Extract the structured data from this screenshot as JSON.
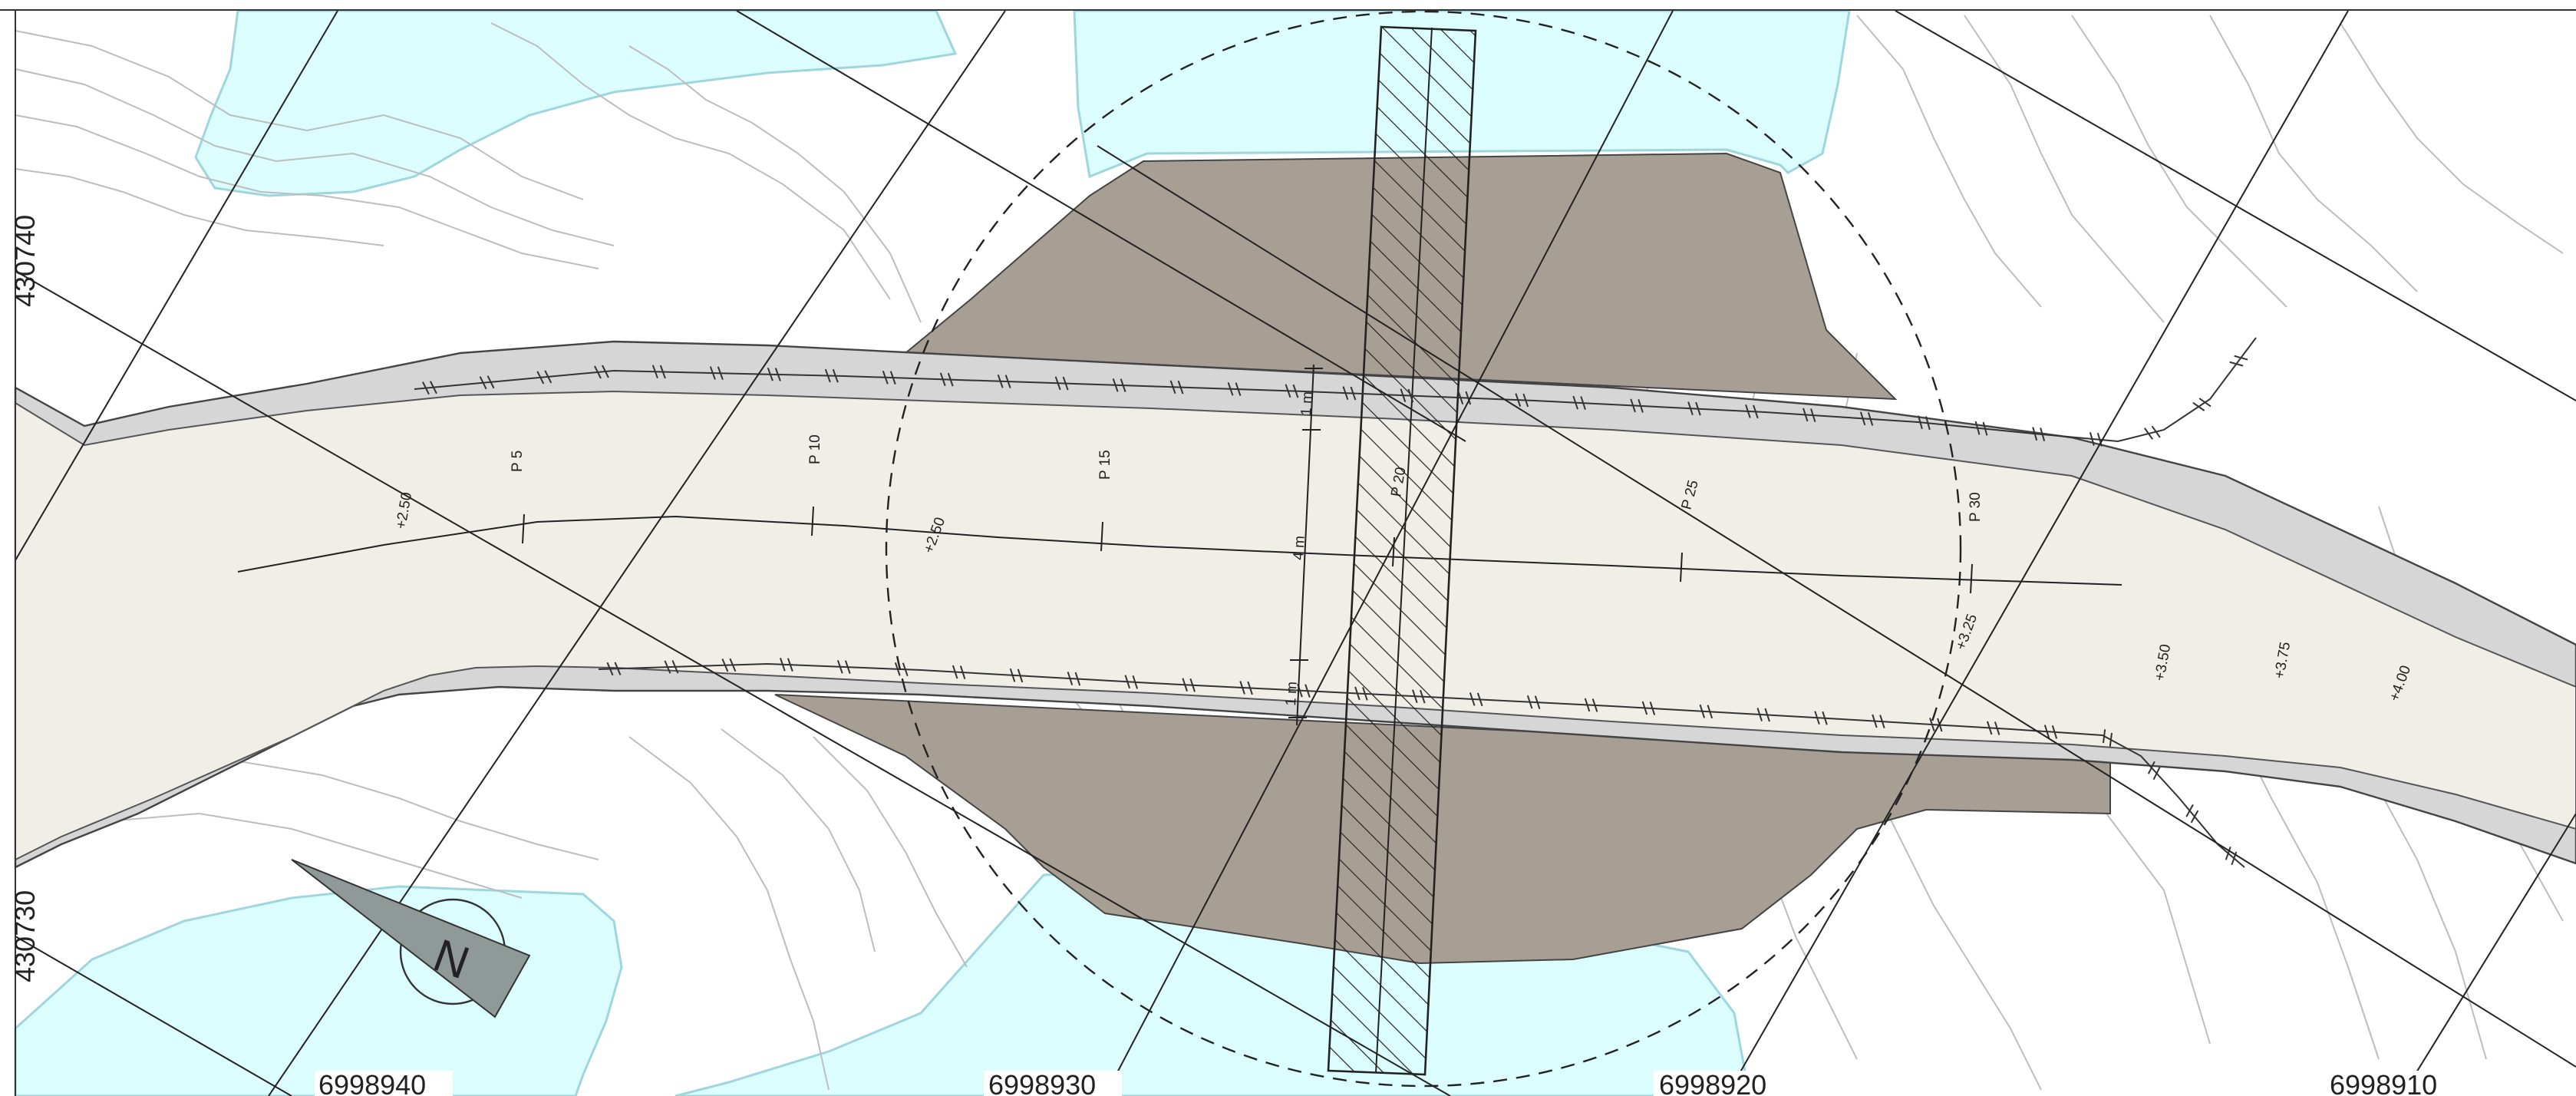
{
  "map": {
    "colors": {
      "water": "#dcfdfe",
      "road_surface": "#f0eee7",
      "road_edge": "#d6d6d6",
      "fill_slope": "#a89f94",
      "contour": "#bdbdbd",
      "line": "#333333"
    },
    "grid_labels": {
      "y_top": "430740",
      "y_bottom": "430730",
      "x_1": "6998940",
      "x_2": "6998930",
      "x_3": "6998920",
      "x_4": "6998910"
    },
    "profiles": [
      "P 5",
      "P 10",
      "P 15",
      "P 20",
      "P 25",
      "P 30"
    ],
    "elevations": [
      "+2.50",
      "+2.50",
      "+3.25",
      "+3.50",
      "+3.75",
      "+4.00"
    ],
    "dimensions": {
      "shoulder_top": "1 m",
      "carriageway": "4 m",
      "shoulder_bottom": "1 m"
    },
    "north_arrow_letter": "N",
    "icons": [
      "north-arrow-icon"
    ]
  }
}
